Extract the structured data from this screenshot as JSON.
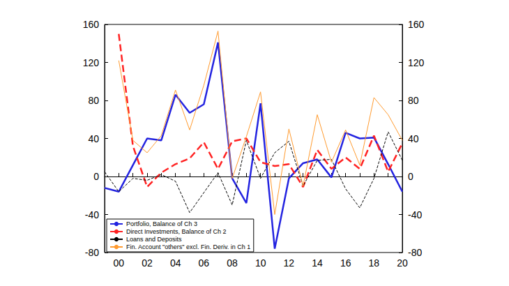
{
  "chart_data": {
    "type": "line",
    "categories": [
      null,
      "00",
      null,
      "02",
      null,
      "04",
      null,
      "06",
      null,
      "08",
      null,
      "10",
      null,
      "12",
      null,
      "14",
      null,
      "16",
      null,
      "18",
      null,
      "20"
    ],
    "series": [
      {
        "name": "Portfolio, Balance of Ch 3",
        "color": "#2323e0",
        "line_style": "solid",
        "values": [
          -12,
          -16,
          12,
          40,
          38,
          86,
          67,
          76,
          141,
          -2,
          -28,
          77,
          -76,
          -2,
          14,
          18,
          -1,
          46,
          40,
          41,
          13,
          -16
        ]
      },
      {
        "name": "Direct Investments, Balance of Ch 2",
        "color": "#ff2222",
        "line_style": "dashed",
        "values": [
          null,
          150,
          32,
          -11,
          4,
          13,
          19,
          36,
          8,
          37,
          40,
          15,
          11,
          13,
          -11,
          28,
          8,
          20,
          8,
          43,
          5,
          35
        ]
      },
      {
        "name": "Loans and Deposits",
        "color": "#000000",
        "line_style": "dashed",
        "values": [
          5,
          -16,
          -2,
          -4,
          2,
          -5,
          -38,
          -17,
          4,
          -30,
          38,
          -2,
          25,
          37,
          -10,
          17,
          18,
          -13,
          -33,
          -2,
          47,
          17
        ]
      },
      {
        "name": "Fin. Account \"others\" excl. Fin. Deriv. in Ch 1",
        "color": "#ff9a2e",
        "line_style": "solid",
        "values": [
          null,
          122,
          38,
          25,
          43,
          91,
          49,
          96,
          153,
          -2,
          42,
          89,
          -40,
          50,
          -10,
          65,
          15,
          49,
          12,
          83,
          65,
          38
        ]
      }
    ],
    "ylim": [
      -80,
      160
    ],
    "yticks": [
      -80,
      -40,
      0,
      40,
      80,
      120,
      160
    ],
    "y2lim": [
      -80,
      160
    ],
    "y2ticks": [
      -80,
      -40,
      0,
      40,
      80,
      120,
      160
    ],
    "grid": false,
    "legend": "lower left"
  }
}
